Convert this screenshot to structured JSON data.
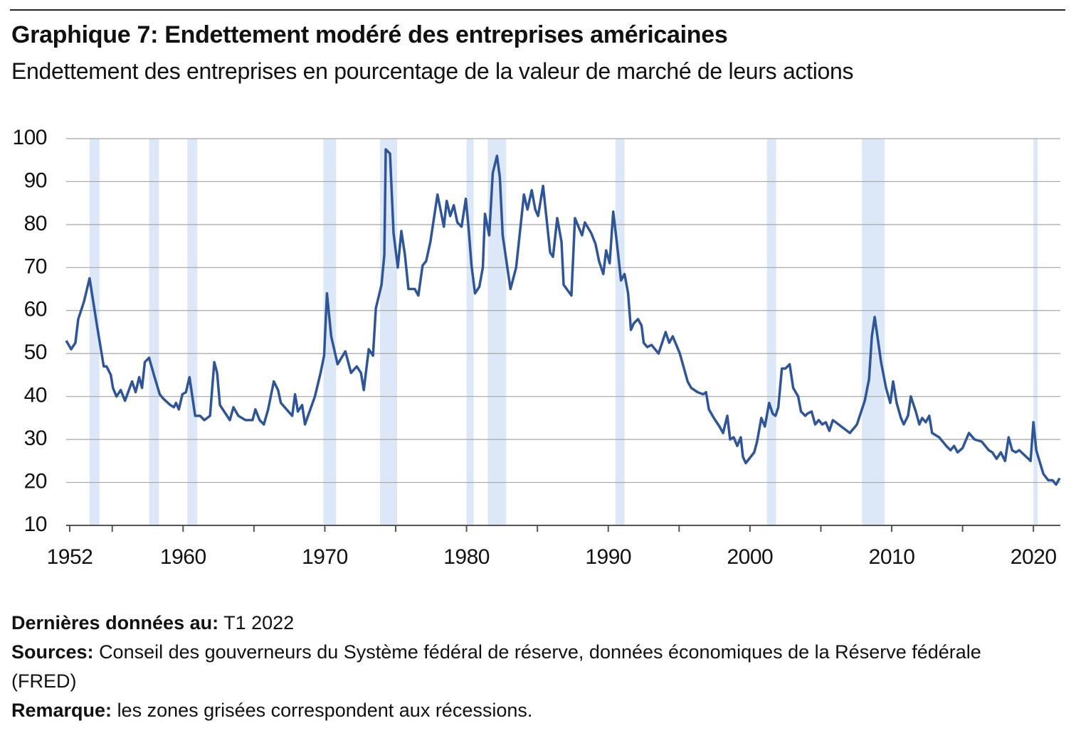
{
  "chart_data": {
    "type": "line",
    "title": "Graphique 7: Endettement modéré des entreprises américaines",
    "subtitle": "Endettement des entreprises en pourcentage de la valeur de marché de leurs actions",
    "xlim": [
      1951.75,
      2021.9
    ],
    "xticks": [
      1952,
      1960,
      1970,
      1980,
      1990,
      2000,
      2010,
      2020
    ],
    "xminorticks": [
      1955,
      1965,
      1975,
      1985,
      1995,
      2005,
      2015
    ],
    "ylim": [
      10,
      100
    ],
    "yticks": [
      10,
      20,
      30,
      40,
      50,
      60,
      70,
      80,
      90,
      100
    ],
    "grid": true,
    "recession_color": "#dce8f7",
    "recessions": [
      [
        1953.4,
        1954.1
      ],
      [
        1957.6,
        1958.3
      ],
      [
        1960.3,
        1961.0
      ],
      [
        1969.9,
        1970.8
      ],
      [
        1973.9,
        1975.1
      ],
      [
        1980.0,
        1980.5
      ],
      [
        1981.5,
        1982.8
      ],
      [
        1990.5,
        1991.15
      ],
      [
        2001.2,
        2001.85
      ],
      [
        2007.9,
        2009.5
      ],
      [
        2020.0,
        2020.3
      ]
    ],
    "x": [
      1951.75,
      1952.1,
      1952.4,
      1952.6,
      1953.0,
      1953.4,
      1953.9,
      1954.4,
      1954.6,
      1954.9,
      1955.05,
      1955.3,
      1955.6,
      1955.9,
      1956.4,
      1956.65,
      1956.9,
      1957.1,
      1957.3,
      1957.6,
      1957.9,
      1958.35,
      1958.6,
      1959.1,
      1959.35,
      1959.5,
      1959.7,
      1959.95,
      1960.2,
      1960.45,
      1960.85,
      1961.2,
      1961.5,
      1961.9,
      1962.2,
      1962.4,
      1962.6,
      1963.3,
      1963.55,
      1963.9,
      1964.4,
      1964.9,
      1965.1,
      1965.4,
      1965.7,
      1966.0,
      1966.4,
      1966.7,
      1966.9,
      1967.3,
      1967.7,
      1967.9,
      1968.1,
      1968.4,
      1968.6,
      1969.3,
      1969.7,
      1969.95,
      1970.15,
      1970.45,
      1970.9,
      1971.45,
      1971.85,
      1972.25,
      1972.55,
      1972.75,
      1973.1,
      1973.4,
      1973.6,
      1974.0,
      1974.2,
      1974.3,
      1974.6,
      1974.85,
      1975.15,
      1975.4,
      1975.65,
      1975.9,
      1976.35,
      1976.6,
      1976.9,
      1977.15,
      1977.45,
      1977.95,
      1978.4,
      1978.6,
      1978.85,
      1979.1,
      1979.35,
      1979.65,
      1979.95,
      1980.15,
      1980.35,
      1980.6,
      1980.9,
      1981.15,
      1981.3,
      1981.6,
      1981.85,
      1982.15,
      1982.35,
      1982.55,
      1983.1,
      1983.5,
      1984.05,
      1984.3,
      1984.6,
      1984.85,
      1985.05,
      1985.4,
      1985.9,
      1986.1,
      1986.4,
      1986.7,
      1986.85,
      1987.4,
      1987.65,
      1987.9,
      1988.15,
      1988.35,
      1988.8,
      1989.1,
      1989.35,
      1989.65,
      1989.85,
      1990.1,
      1990.35,
      1990.6,
      1990.9,
      1991.15,
      1991.4,
      1991.6,
      1991.8,
      1992.1,
      1992.35,
      1992.5,
      1992.75,
      1993.05,
      1993.55,
      1994.05,
      1994.3,
      1994.55,
      1995.05,
      1995.6,
      1995.85,
      1996.3,
      1996.7,
      1996.9,
      1997.1,
      1997.45,
      1997.85,
      1998.1,
      1998.4,
      1998.6,
      1998.85,
      1999.1,
      1999.35,
      1999.5,
      1999.7,
      2000.3,
      2000.5,
      2000.8,
      2001.05,
      2001.35,
      2001.6,
      2001.8,
      2002.0,
      2002.25,
      2002.5,
      2002.8,
      2003.05,
      2003.4,
      2003.6,
      2003.9,
      2004.05,
      2004.35,
      2004.6,
      2004.85,
      2005.1,
      2005.35,
      2005.6,
      2005.85,
      2006.45,
      2007.05,
      2007.55,
      2007.8,
      2008.1,
      2008.4,
      2008.6,
      2008.8,
      2009.25,
      2009.6,
      2009.9,
      2010.1,
      2010.35,
      2010.65,
      2010.85,
      2011.15,
      2011.35,
      2011.7,
      2011.95,
      2012.15,
      2012.4,
      2012.65,
      2012.85,
      2013.35,
      2013.85,
      2014.15,
      2014.4,
      2014.65,
      2015.0,
      2015.45,
      2015.85,
      2016.35,
      2016.85,
      2017.1,
      2017.4,
      2017.7,
      2018.0,
      2018.25,
      2018.5,
      2018.75,
      2019.0,
      2019.8,
      2020.0,
      2020.2,
      2020.7,
      2021.05,
      2021.35,
      2021.6,
      2021.85
    ],
    "series": [
      {
        "color": "#2e5597",
        "values": [
          53,
          51,
          52.5,
          58,
          62,
          67.5,
          57,
          47,
          47,
          45,
          42,
          40,
          41.5,
          39,
          43.5,
          41,
          44.5,
          42,
          48,
          49,
          45.5,
          40.5,
          39.5,
          38,
          37.5,
          38.5,
          37,
          40.5,
          41,
          44.5,
          35.5,
          35.5,
          34.5,
          35.5,
          48,
          45.5,
          38,
          34.5,
          37.5,
          35.5,
          34.5,
          34.5,
          37,
          34.5,
          33.5,
          37,
          43.5,
          41.5,
          38.5,
          37,
          35.5,
          40.5,
          36.5,
          38,
          33.5,
          40,
          45.5,
          49.5,
          64,
          54,
          47.5,
          50.5,
          45.5,
          47,
          45.5,
          41.5,
          51,
          49.5,
          60.5,
          66,
          73,
          97.5,
          96.5,
          78,
          70,
          78.5,
          73,
          65,
          65,
          63.5,
          70.5,
          71.5,
          76,
          87,
          79.5,
          85.5,
          82,
          84.5,
          80.5,
          79.5,
          86,
          79,
          70.5,
          64,
          65.5,
          70,
          82.5,
          77.5,
          92,
          96,
          91,
          77.5,
          65,
          70,
          87,
          83.5,
          88,
          83.5,
          82,
          89,
          73.5,
          72.5,
          81.5,
          76,
          66,
          63.5,
          81.5,
          79.5,
          77.5,
          80.5,
          78,
          75.5,
          71.5,
          68.5,
          74,
          71,
          83,
          76,
          67,
          68.5,
          64,
          55.5,
          57,
          58,
          56.5,
          52.5,
          51.5,
          52,
          50,
          55,
          52.5,
          54,
          50,
          43.5,
          42,
          41,
          40.5,
          41,
          37,
          35,
          33,
          31.5,
          35.5,
          30,
          30.5,
          28.5,
          30.5,
          26,
          24.5,
          27,
          29.5,
          35,
          33,
          38.5,
          36,
          35.5,
          37.5,
          46.5,
          46.5,
          47.5,
          42,
          40,
          36.5,
          35.5,
          36,
          36.5,
          33.5,
          34.5,
          33.5,
          34,
          32,
          34.5,
          33,
          31.5,
          33.5,
          36,
          39,
          44,
          54,
          58.5,
          48,
          42,
          38.5,
          43.5,
          38.5,
          35,
          33.5,
          35.5,
          40,
          36.5,
          33.5,
          35,
          34,
          35.5,
          31.5,
          30.5,
          28.5,
          27.5,
          28.5,
          27,
          28,
          31.5,
          30,
          29.5,
          27.5,
          27,
          25.5,
          27,
          25,
          30.5,
          27.5,
          27,
          27.5,
          25,
          34,
          27.5,
          22,
          20.5,
          20.5,
          19.5,
          21
        ]
      }
    ]
  },
  "notes": [
    {
      "label": "Dernières données au:",
      "text": "T1 2022"
    },
    {
      "label": "Sources:",
      "text": "Conseil des gouverneurs du Système fédéral de réserve, données économiques de la Réserve fédérale (FRED)"
    },
    {
      "label": "Remarque:",
      "text": "les zones grisées correspondent aux récessions."
    }
  ]
}
